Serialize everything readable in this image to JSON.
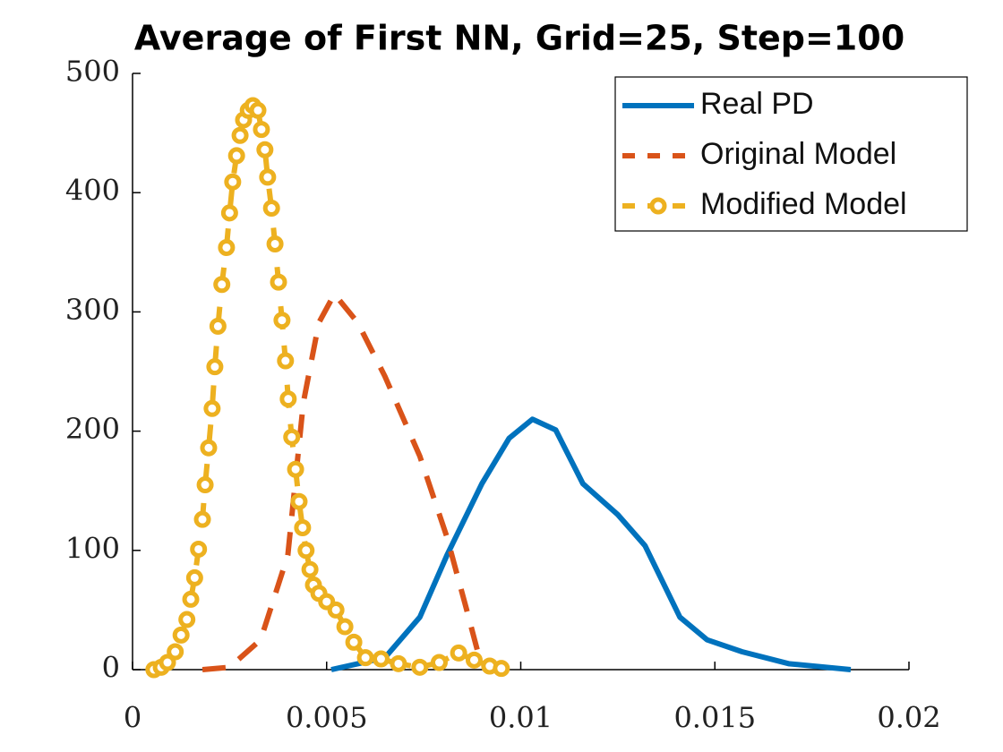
{
  "chart_data": {
    "type": "line",
    "title": "Average of First NN, Grid=25, Step=100",
    "xlim": [
      0,
      0.02
    ],
    "xticks": [
      0,
      0.005,
      0.01,
      0.015,
      0.02
    ],
    "ylim": [
      0,
      500
    ],
    "yticks": [
      0,
      100,
      200,
      300,
      400,
      500
    ],
    "grid": false,
    "legend": "upper right",
    "series": [
      {
        "name": "Real PD",
        "color": "#0072bd",
        "style": "solid",
        "x": [
          0.00512,
          0.0065,
          0.0074,
          0.0081,
          0.009,
          0.0097,
          0.0103,
          0.0109,
          0.0116,
          0.0125,
          0.0132,
          0.0141,
          0.0148,
          0.0157,
          0.0169,
          0.0185
        ],
        "values": [
          0,
          10,
          44,
          96,
          156,
          194,
          210,
          201,
          156,
          130,
          104,
          44,
          25,
          15,
          5,
          0
        ]
      },
      {
        "name": "Original Model",
        "color": "#d95319",
        "style": "dashed",
        "x": [
          0.0018,
          0.0025,
          0.0033,
          0.004,
          0.0044,
          0.0048,
          0.0052,
          0.0058,
          0.0065,
          0.0074,
          0.0081,
          0.0086,
          0.0089,
          0.0092
        ],
        "values": [
          0,
          2,
          25,
          96,
          224,
          291,
          315,
          291,
          246,
          179,
          111,
          51,
          14,
          0
        ]
      },
      {
        "name": "Modified Model",
        "color": "#edb120",
        "style": "dashed",
        "marker": "circle",
        "x": [
          0.00055,
          0.00074,
          0.0009,
          0.0011,
          0.00125,
          0.0014,
          0.0015,
          0.0016,
          0.0017,
          0.0018,
          0.00187,
          0.00196,
          0.00205,
          0.00212,
          0.0022,
          0.0023,
          0.00242,
          0.0025,
          0.00258,
          0.00268,
          0.00277,
          0.00286,
          0.00298,
          0.0031,
          0.00323,
          0.00332,
          0.00341,
          0.00348,
          0.00358,
          0.00367,
          0.00376,
          0.00385,
          0.00394,
          0.00401,
          0.0041,
          0.0042,
          0.00429,
          0.00438,
          0.00447,
          0.00457,
          0.00466,
          0.0048,
          0.005,
          0.00524,
          0.00547,
          0.0057,
          0.006,
          0.0064,
          0.00685,
          0.0074,
          0.0079,
          0.0084,
          0.0088,
          0.0092,
          0.0095
        ],
        "values": [
          0,
          2,
          6,
          15,
          29,
          42,
          59,
          77,
          101,
          126,
          155,
          186,
          219,
          254,
          288,
          323,
          354,
          383,
          409,
          431,
          448,
          461,
          469,
          473,
          469,
          453,
          436,
          413,
          387,
          357,
          325,
          293,
          259,
          227,
          195,
          168,
          141,
          119,
          100,
          84,
          71,
          64,
          57,
          50,
          36,
          23,
          10,
          9,
          5,
          2,
          6,
          14,
          8,
          3,
          1
        ]
      }
    ]
  }
}
